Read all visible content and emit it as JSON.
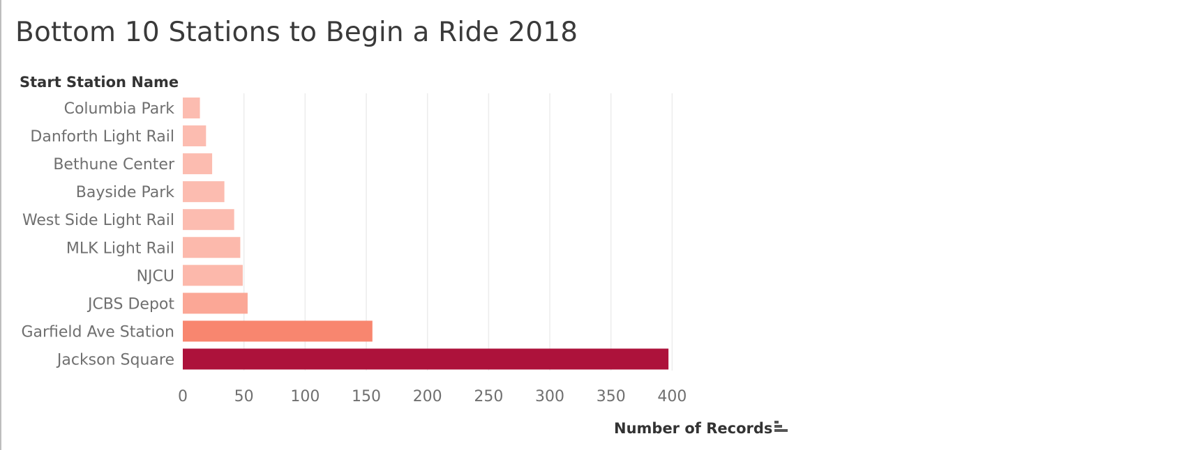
{
  "chart_data": {
    "type": "bar",
    "orientation": "horizontal",
    "title": "Bottom 10 Stations to Begin a Ride 2018",
    "row_header": "Start Station Name",
    "xlabel": "Number of Records",
    "ylabel": "Start Station Name",
    "categories": [
      "Columbia Park",
      "Danforth Light Rail",
      "Bethune Center",
      "Bayside Park",
      "West Side Light Rail",
      "MLK Light Rail",
      "NJCU",
      "JCBS Depot",
      "Garfield Ave Station",
      "Jackson Square"
    ],
    "values": [
      14,
      19,
      24,
      34,
      42,
      47,
      49,
      53,
      155,
      397
    ],
    "colors": [
      "#fcbcb0",
      "#fcbcb0",
      "#fcbcb0",
      "#fcbcb0",
      "#fcbcb0",
      "#fcb9ac",
      "#fcb8ab",
      "#fba796",
      "#f8866f",
      "#ad123b"
    ],
    "xlim": [
      0,
      420
    ],
    "xticks": [
      0,
      50,
      100,
      150,
      200,
      250,
      300,
      350,
      400
    ],
    "grid": "vertical",
    "sort_icon": "sort-descending-icon"
  }
}
